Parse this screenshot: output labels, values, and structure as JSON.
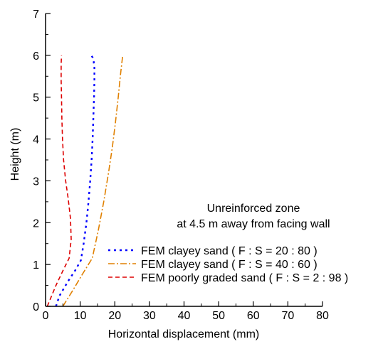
{
  "chart_data": {
    "type": "line",
    "xlabel": "Horizontal displacement (mm)",
    "ylabel": "Height (m)",
    "xlim": [
      0,
      80
    ],
    "ylim": [
      0,
      7
    ],
    "xticks": [
      0,
      10,
      20,
      30,
      40,
      50,
      60,
      70,
      80
    ],
    "yticks": [
      0,
      1,
      2,
      3,
      4,
      5,
      6,
      7
    ],
    "grid": false,
    "legend_position": "lower-right",
    "annotation": [
      "Unreinforced zone",
      "at 4.5 m away from facing wall"
    ],
    "series": [
      {
        "name": "FEM clayey sand ( F : S = 20 : 80 )",
        "color": "#0000ff",
        "dash": "dotted",
        "x": [
          3.0,
          4.0,
          6.5,
          8.5,
          10.2,
          11.0,
          11.8,
          12.4,
          12.9,
          13.3,
          13.6,
          13.8,
          14.0,
          14.1,
          14.1,
          13.9,
          13.6,
          13.2
        ],
        "y": [
          0.0,
          0.25,
          0.6,
          0.85,
          1.1,
          1.5,
          2.0,
          2.5,
          3.0,
          3.5,
          4.0,
          4.5,
          5.0,
          5.4,
          5.7,
          5.85,
          5.95,
          6.0
        ]
      },
      {
        "name": "FEM clayey sand ( F : S = 40 : 60 )",
        "color": "#e08000",
        "dash": "dashdot",
        "x": [
          5.0,
          8.0,
          10.5,
          13.5,
          15.2,
          16.8,
          18.2,
          19.3,
          20.2,
          21.0,
          21.6,
          22.0,
          22.3
        ],
        "y": [
          0.0,
          0.4,
          0.75,
          1.15,
          1.8,
          2.5,
          3.2,
          3.8,
          4.4,
          5.0,
          5.5,
          5.8,
          6.0
        ]
      },
      {
        "name": "FEM poorly graded sand ( F : S = 2 : 98 )",
        "color": "#dd0000",
        "dash": "dashed",
        "x": [
          0.5,
          1.5,
          3.0,
          5.0,
          6.8,
          7.4,
          7.2,
          6.5,
          5.8,
          5.2,
          4.9,
          4.7,
          4.6,
          4.5,
          4.5,
          4.6
        ],
        "y": [
          0.0,
          0.2,
          0.5,
          0.85,
          1.15,
          1.6,
          2.1,
          2.6,
          3.0,
          3.5,
          4.0,
          4.5,
          5.0,
          5.4,
          5.8,
          6.0
        ]
      }
    ]
  }
}
